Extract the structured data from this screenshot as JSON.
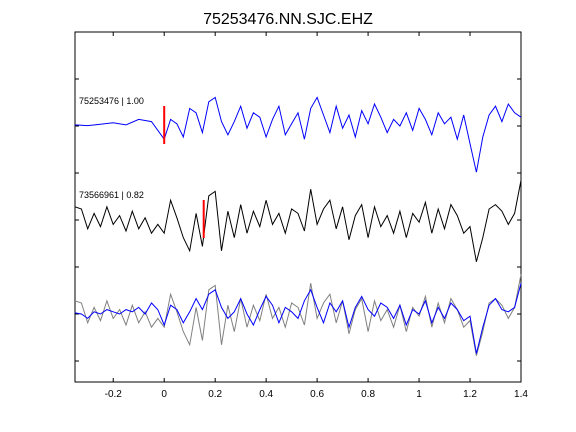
{
  "chart_data": {
    "type": "line",
    "title": "75253476.NN.SJC.EHZ",
    "xlim": [
      -0.35,
      1.4
    ],
    "x_ticks": [
      -0.2,
      0,
      0.2,
      0.4,
      0.6,
      0.8,
      1,
      1.2,
      1.4
    ],
    "x_tick_labels": [
      "-0.2",
      "0",
      "0.2",
      "0.4",
      "0.6",
      "0.8",
      "1",
      "1.2",
      "1.4"
    ],
    "grid": false,
    "colors": {
      "primary": "#0000ff",
      "secondary": "#000000",
      "overlay": "#808080",
      "pick": "#ff0000"
    },
    "traces": [
      {
        "label": "75253476 | 1.00",
        "color": "#0000ff",
        "pick_x": 0.0,
        "x": [
          -0.35,
          -0.3,
          -0.25,
          -0.2,
          -0.15,
          -0.1,
          -0.05,
          0,
          0.025,
          0.05,
          0.075,
          0.1,
          0.125,
          0.15,
          0.175,
          0.2,
          0.225,
          0.25,
          0.275,
          0.3,
          0.325,
          0.35,
          0.375,
          0.4,
          0.425,
          0.45,
          0.475,
          0.5,
          0.525,
          0.55,
          0.575,
          0.6,
          0.625,
          0.65,
          0.675,
          0.7,
          0.725,
          0.75,
          0.775,
          0.8,
          0.825,
          0.85,
          0.875,
          0.9,
          0.925,
          0.95,
          0.975,
          1,
          1.025,
          1.05,
          1.075,
          1.1,
          1.125,
          1.15,
          1.175,
          1.2,
          1.225,
          1.25,
          1.275,
          1.3,
          1.325,
          1.35,
          1.375,
          1.4
        ],
        "y": [
          0.05,
          0.02,
          0.08,
          0.15,
          0.05,
          0.3,
          0.2,
          -0.6,
          0.3,
          0.1,
          -0.5,
          0.8,
          0.6,
          -0.3,
          1.1,
          1.3,
          0.2,
          -0.4,
          0.2,
          0.9,
          -0.1,
          0.6,
          0.4,
          -0.5,
          0.3,
          0.9,
          -0.4,
          0.1,
          0.6,
          -0.6,
          0.8,
          1.3,
          0.5,
          -0.3,
          0.9,
          -0.1,
          0.5,
          -0.5,
          0.7,
          0.1,
          1.0,
          0.4,
          -0.3,
          0.3,
          0.0,
          0.6,
          -0.2,
          0.8,
          0.3,
          -0.4,
          0.6,
          0.1,
          0.4,
          -0.6,
          0.5,
          -0.8,
          -2.1,
          -0.5,
          0.5,
          0.9,
          0.2,
          1.0,
          0.6,
          0.4
        ]
      },
      {
        "label": "73566961 | 0.82",
        "color": "#000000",
        "pick_x": 0.155,
        "x": [
          -0.35,
          -0.325,
          -0.3,
          -0.275,
          -0.25,
          -0.225,
          -0.2,
          -0.175,
          -0.15,
          -0.125,
          -0.1,
          -0.075,
          -0.05,
          -0.025,
          0,
          0.025,
          0.05,
          0.075,
          0.1,
          0.125,
          0.15,
          0.175,
          0.2,
          0.225,
          0.25,
          0.275,
          0.3,
          0.325,
          0.35,
          0.375,
          0.4,
          0.425,
          0.45,
          0.475,
          0.5,
          0.525,
          0.55,
          0.575,
          0.6,
          0.625,
          0.65,
          0.675,
          0.7,
          0.725,
          0.75,
          0.775,
          0.8,
          0.825,
          0.85,
          0.875,
          0.9,
          0.925,
          0.95,
          0.975,
          1,
          1.025,
          1.05,
          1.075,
          1.1,
          1.125,
          1.15,
          1.175,
          1.2,
          1.225,
          1.25,
          1.275,
          1.3,
          1.325,
          1.35,
          1.375,
          1.4
        ],
        "y": [
          0.6,
          0.5,
          -0.4,
          0.3,
          -0.3,
          0.6,
          -0.2,
          0.2,
          -0.5,
          0.4,
          -0.4,
          0.1,
          -0.6,
          -0.2,
          -0.6,
          0.9,
          0.1,
          -0.8,
          -1.4,
          0.3,
          -1.2,
          1.1,
          1.3,
          -1.4,
          0.4,
          -0.8,
          0.7,
          -0.6,
          0.4,
          -0.3,
          0.9,
          -0.2,
          0.3,
          -0.6,
          0.5,
          0.3,
          -0.5,
          1.4,
          -0.2,
          0.5,
          0.9,
          -0.4,
          0.6,
          -0.9,
          0.2,
          0.7,
          -0.8,
          0.6,
          -0.3,
          0.2,
          -0.6,
          0.4,
          -0.8,
          0.3,
          -0.1,
          0.8,
          -0.6,
          0.5,
          -0.4,
          0.7,
          0.2,
          -0.6,
          -0.3,
          -1.9,
          -0.8,
          0.5,
          0.7,
          0.4,
          -0.2,
          0.3,
          1.8
        ]
      },
      {
        "label": "",
        "color": "#0000ff",
        "overlay_color": "#808080",
        "pick_x": null,
        "x": [
          -0.35,
          -0.325,
          -0.3,
          -0.275,
          -0.25,
          -0.225,
          -0.2,
          -0.175,
          -0.15,
          -0.125,
          -0.1,
          -0.075,
          -0.05,
          -0.025,
          0,
          0.025,
          0.05,
          0.075,
          0.1,
          0.125,
          0.15,
          0.175,
          0.2,
          0.225,
          0.25,
          0.275,
          0.3,
          0.325,
          0.35,
          0.375,
          0.4,
          0.425,
          0.45,
          0.475,
          0.5,
          0.525,
          0.55,
          0.575,
          0.6,
          0.625,
          0.65,
          0.675,
          0.7,
          0.725,
          0.75,
          0.775,
          0.8,
          0.825,
          0.85,
          0.875,
          0.9,
          0.925,
          0.95,
          0.975,
          1,
          1.025,
          1.05,
          1.075,
          1.1,
          1.125,
          1.15,
          1.175,
          1.2,
          1.225,
          1.25,
          1.275,
          1.3,
          1.325,
          1.35,
          1.375,
          1.4
        ],
        "y": [
          0.05,
          0.0,
          -0.2,
          0.1,
          0.0,
          0.2,
          0.1,
          0.0,
          0.2,
          0.1,
          0.3,
          0.0,
          0.5,
          0.2,
          -0.5,
          0.4,
          0.2,
          -0.4,
          0.1,
          0.7,
          0.2,
          0.9,
          1.1,
          0.3,
          -0.2,
          0.1,
          0.7,
          0.0,
          -0.5,
          0.2,
          0.8,
          0.4,
          -0.4,
          0.3,
          0.1,
          -0.2,
          0.6,
          1.1,
          0.3,
          -0.4,
          0.5,
          0.1,
          0.6,
          -0.6,
          0.3,
          0.8,
          0.2,
          -0.1,
          0.5,
          0.3,
          -0.2,
          0.4,
          -0.5,
          0.2,
          0.0,
          0.6,
          -0.4,
          0.3,
          -0.2,
          0.5,
          0.2,
          -0.3,
          -0.1,
          -1.8,
          -0.6,
          0.4,
          0.7,
          0.2,
          0.1,
          0.3,
          1.4
        ],
        "overlay_y": [
          0.6,
          0.5,
          -0.4,
          0.3,
          -0.3,
          0.6,
          -0.2,
          0.2,
          -0.5,
          0.4,
          -0.4,
          0.1,
          -0.6,
          -0.2,
          -0.6,
          0.9,
          0.1,
          -0.8,
          -1.4,
          0.3,
          -1.2,
          1.1,
          1.3,
          -1.4,
          0.4,
          -0.8,
          0.7,
          -0.6,
          0.4,
          -0.3,
          0.9,
          -0.2,
          0.3,
          -0.6,
          0.5,
          0.3,
          -0.5,
          1.4,
          -0.2,
          0.5,
          0.9,
          -0.4,
          0.6,
          -0.9,
          0.2,
          0.7,
          -0.8,
          0.6,
          -0.3,
          0.2,
          -0.6,
          0.4,
          -0.8,
          0.3,
          -0.1,
          0.8,
          -0.6,
          0.5,
          -0.4,
          0.7,
          0.2,
          -0.6,
          -0.3,
          -1.9,
          -0.8,
          0.5,
          0.7,
          0.4,
          -0.2,
          0.3,
          1.8
        ]
      }
    ]
  }
}
